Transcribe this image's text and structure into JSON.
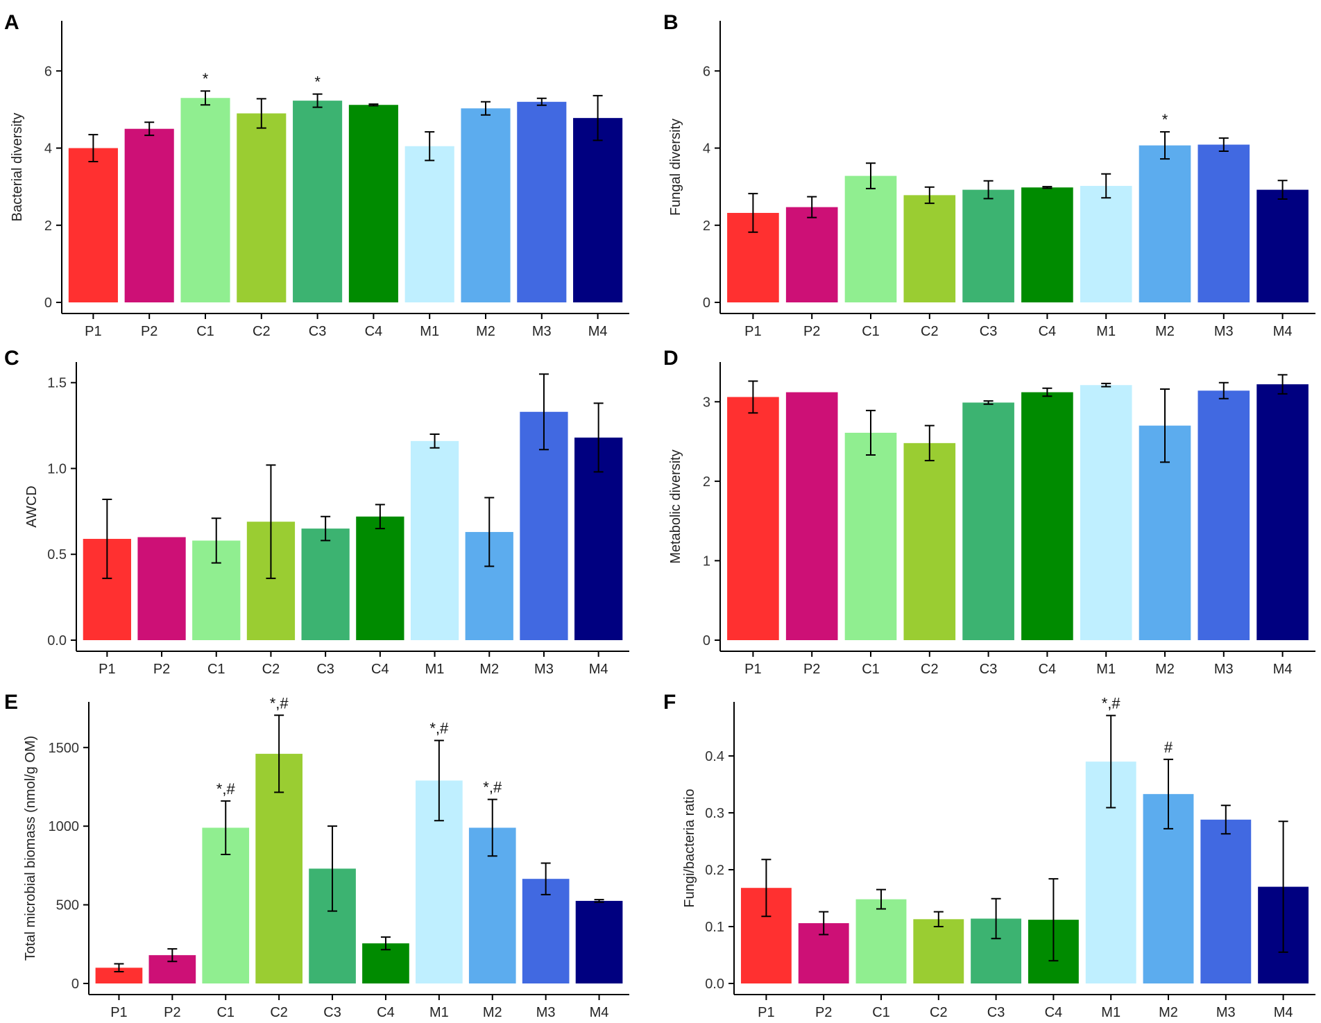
{
  "chart_data": [
    {
      "panel": "A",
      "type": "bar",
      "ylabel": "Bacterial diversity",
      "ylim": [
        0,
        7.3
      ],
      "yticks": [
        0,
        2,
        4,
        6
      ],
      "tick_labels": [
        "0",
        "2",
        "4",
        "6"
      ],
      "categories": [
        "P1",
        "P2",
        "C1",
        "C2",
        "C3",
        "C4",
        "M1",
        "M2",
        "M3",
        "M4"
      ],
      "values": [
        4.0,
        4.5,
        5.3,
        4.9,
        5.23,
        5.12,
        4.05,
        5.03,
        5.2,
        4.78
      ],
      "errors": [
        0.35,
        0.17,
        0.18,
        0.38,
        0.17,
        0.02,
        0.37,
        0.17,
        0.09,
        0.58
      ],
      "annotations": [
        "",
        "",
        "*",
        "",
        "*",
        "",
        "",
        "",
        "",
        ""
      ]
    },
    {
      "panel": "B",
      "type": "bar",
      "ylabel": "Fungal diversity",
      "ylim": [
        0,
        7.3
      ],
      "yticks": [
        0,
        2,
        4,
        6
      ],
      "tick_labels": [
        "0",
        "2",
        "4",
        "6"
      ],
      "categories": [
        "P1",
        "P2",
        "C1",
        "C2",
        "C3",
        "C4",
        "M1",
        "M2",
        "M3",
        "M4"
      ],
      "values": [
        2.32,
        2.47,
        3.28,
        2.78,
        2.92,
        2.98,
        3.02,
        4.07,
        4.09,
        2.92
      ],
      "errors": [
        0.5,
        0.27,
        0.33,
        0.21,
        0.23,
        0.02,
        0.31,
        0.35,
        0.17,
        0.24
      ],
      "annotations": [
        "",
        "",
        "",
        "",
        "",
        "",
        "",
        "*",
        "",
        ""
      ]
    },
    {
      "panel": "C",
      "type": "bar",
      "ylabel": "AWCD",
      "ylim": [
        0,
        1.62
      ],
      "yticks": [
        0,
        0.5,
        1,
        1.5
      ],
      "tick_labels": [
        "0.0",
        "0.5",
        "1.0",
        "1.5"
      ],
      "categories": [
        "P1",
        "P2",
        "C1",
        "C2",
        "C3",
        "C4",
        "M1",
        "M2",
        "M3",
        "M4"
      ],
      "values": [
        0.59,
        0.6,
        0.58,
        0.69,
        0.65,
        0.72,
        1.16,
        0.63,
        1.33,
        1.18
      ],
      "errors": [
        0.23,
        0.0,
        0.13,
        0.33,
        0.07,
        0.07,
        0.04,
        0.2,
        0.22,
        0.2
      ],
      "annotations": [
        "",
        "",
        "",
        "",
        "",
        "",
        "",
        "",
        "",
        ""
      ]
    },
    {
      "panel": "D",
      "type": "bar",
      "ylabel": "Metabolic diversity",
      "ylim": [
        0,
        3.5
      ],
      "yticks": [
        0,
        1,
        2,
        3
      ],
      "tick_labels": [
        "0",
        "1",
        "2",
        "3"
      ],
      "categories": [
        "P1",
        "P2",
        "C1",
        "C2",
        "C3",
        "C4",
        "M1",
        "M2",
        "M3",
        "M4"
      ],
      "values": [
        3.06,
        3.12,
        2.61,
        2.48,
        2.99,
        3.12,
        3.21,
        2.7,
        3.14,
        3.22
      ],
      "errors": [
        0.2,
        0.0,
        0.28,
        0.22,
        0.02,
        0.05,
        0.02,
        0.46,
        0.1,
        0.12
      ],
      "annotations": [
        "",
        "",
        "",
        "",
        "",
        "",
        "",
        "",
        "",
        ""
      ]
    },
    {
      "panel": "E",
      "type": "bar",
      "ylabel": "Total microbial biomass (nmol/g OM)",
      "ylim": [
        0,
        1790
      ],
      "yticks": [
        0,
        500,
        1000,
        1500
      ],
      "tick_labels": [
        "0",
        "500",
        "1000",
        "1500"
      ],
      "categories": [
        "P1",
        "P2",
        "C1",
        "C2",
        "C3",
        "C4",
        "M1",
        "M2",
        "M3",
        "M4"
      ],
      "values": [
        100,
        180,
        990,
        1460,
        730,
        255,
        1290,
        990,
        665,
        525
      ],
      "errors": [
        25,
        40,
        170,
        245,
        270,
        40,
        255,
        180,
        100,
        8
      ],
      "annotations": [
        "",
        "",
        "*,#",
        "*,#",
        "",
        "",
        "*,#",
        "*,#",
        "",
        ""
      ]
    },
    {
      "panel": "F",
      "type": "bar",
      "ylabel": "Fungi/bacteria ratio",
      "ylim": [
        0,
        0.495
      ],
      "yticks": [
        0,
        0.1,
        0.2,
        0.3,
        0.4
      ],
      "tick_labels": [
        "0.0",
        "0.1",
        "0.2",
        "0.3",
        "0.4"
      ],
      "categories": [
        "P1",
        "P2",
        "C1",
        "C2",
        "C3",
        "C4",
        "M1",
        "M2",
        "M3",
        "M4"
      ],
      "values": [
        0.168,
        0.106,
        0.148,
        0.113,
        0.114,
        0.112,
        0.39,
        0.333,
        0.288,
        0.17
      ],
      "errors": [
        0.05,
        0.02,
        0.017,
        0.013,
        0.035,
        0.072,
        0.081,
        0.061,
        0.025,
        0.115
      ],
      "annotations": [
        "",
        "",
        "",
        "",
        "",
        "",
        "*,#",
        "#",
        "",
        ""
      ]
    }
  ],
  "colors": {
    "P1": "#ff3030",
    "P2": "#cd1076",
    "C1": "#90ee90",
    "C2": "#9acd32",
    "C3": "#3cb371",
    "C4": "#008b00",
    "M1": "#bfefff",
    "M2": "#5cacee",
    "M3": "#4169e1",
    "M4": "#000080"
  }
}
